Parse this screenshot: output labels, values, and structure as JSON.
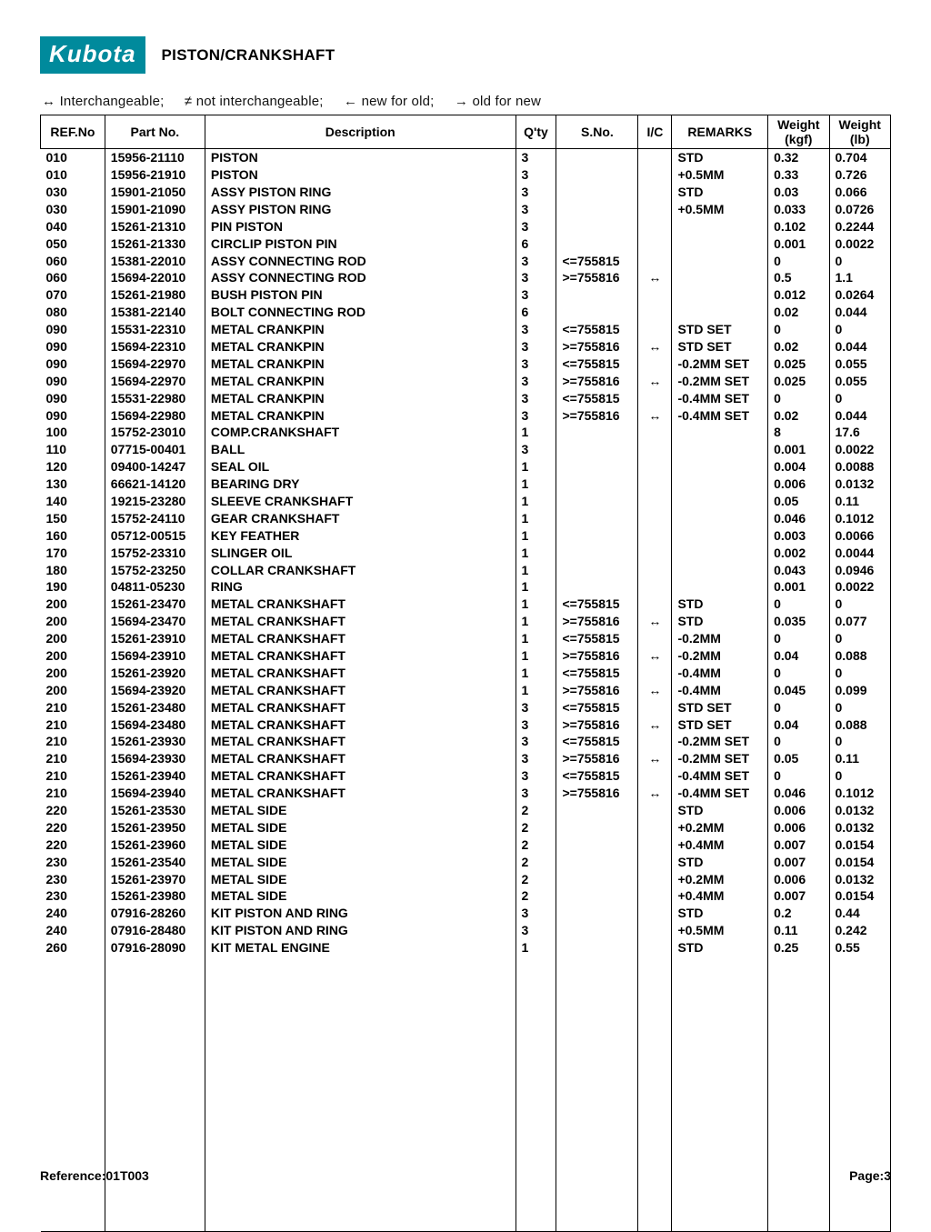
{
  "brand": "Kubota",
  "title": "PISTON/CRANKSHAFT",
  "legend": {
    "inter": "↔ Interchangeable;",
    "notinter": "≠ not interchangeable;",
    "newold": "← new for old;",
    "oldnew": "→ old for new"
  },
  "columns": [
    "REF.No",
    "Part No.",
    "Description",
    "Q'ty",
    "S.No.",
    "I/C",
    "REMARKS",
    "Weight (kgf)",
    "Weight (lb)"
  ],
  "footer": {
    "ref": "Reference:01T003",
    "page": "Page:3"
  },
  "rows": [
    {
      "ref": "010",
      "part": "15956-21110",
      "desc": "PISTON",
      "qty": "3",
      "sno": "",
      "ic": "",
      "rem": "STD",
      "kgf": "0.32",
      "lb": "0.704"
    },
    {
      "ref": "010",
      "part": "15956-21910",
      "desc": "PISTON",
      "qty": "3",
      "sno": "",
      "ic": "",
      "rem": "+0.5MM",
      "kgf": "0.33",
      "lb": "0.726"
    },
    {
      "ref": "030",
      "part": "15901-21050",
      "desc": "ASSY PISTON RING",
      "qty": "3",
      "sno": "",
      "ic": "",
      "rem": "STD",
      "kgf": "0.03",
      "lb": "0.066"
    },
    {
      "ref": "030",
      "part": "15901-21090",
      "desc": "ASSY PISTON RING",
      "qty": "3",
      "sno": "",
      "ic": "",
      "rem": "+0.5MM",
      "kgf": "0.033",
      "lb": "0.0726"
    },
    {
      "ref": "040",
      "part": "15261-21310",
      "desc": "PIN PISTON",
      "qty": "3",
      "sno": "",
      "ic": "",
      "rem": "",
      "kgf": "0.102",
      "lb": "0.2244"
    },
    {
      "ref": "050",
      "part": "15261-21330",
      "desc": "CIRCLIP PISTON PIN",
      "qty": "6",
      "sno": "",
      "ic": "",
      "rem": "",
      "kgf": "0.001",
      "lb": "0.0022"
    },
    {
      "ref": "060",
      "part": "15381-22010",
      "desc": "ASSY CONNECTING ROD",
      "qty": "3",
      "sno": "<=755815",
      "ic": "",
      "rem": "",
      "kgf": "0",
      "lb": "0"
    },
    {
      "ref": "060",
      "part": "15694-22010",
      "desc": "ASSY CONNECTING ROD",
      "qty": "3",
      "sno": ">=755816",
      "ic": "↔",
      "rem": "",
      "kgf": "0.5",
      "lb": "1.1"
    },
    {
      "ref": "070",
      "part": "15261-21980",
      "desc": "BUSH PISTON PIN",
      "qty": "3",
      "sno": "",
      "ic": "",
      "rem": "",
      "kgf": "0.012",
      "lb": "0.0264"
    },
    {
      "ref": "080",
      "part": "15381-22140",
      "desc": "BOLT CONNECTING ROD",
      "qty": "6",
      "sno": "",
      "ic": "",
      "rem": "",
      "kgf": "0.02",
      "lb": "0.044"
    },
    {
      "ref": "090",
      "part": "15531-22310",
      "desc": "METAL CRANKPIN",
      "qty": "3",
      "sno": "<=755815",
      "ic": "",
      "rem": "STD SET",
      "kgf": "0",
      "lb": "0"
    },
    {
      "ref": "090",
      "part": "15694-22310",
      "desc": "METAL CRANKPIN",
      "qty": "3",
      "sno": ">=755816",
      "ic": "↔",
      "rem": "STD SET",
      "kgf": "0.02",
      "lb": "0.044"
    },
    {
      "ref": "090",
      "part": "15694-22970",
      "desc": "METAL CRANKPIN",
      "qty": "3",
      "sno": "<=755815",
      "ic": "",
      "rem": "-0.2MM SET",
      "kgf": "0.025",
      "lb": "0.055"
    },
    {
      "ref": "090",
      "part": "15694-22970",
      "desc": "METAL CRANKPIN",
      "qty": "3",
      "sno": ">=755816",
      "ic": "↔",
      "rem": "-0.2MM SET",
      "kgf": "0.025",
      "lb": "0.055"
    },
    {
      "ref": "090",
      "part": "15531-22980",
      "desc": "METAL CRANKPIN",
      "qty": "3",
      "sno": "<=755815",
      "ic": "",
      "rem": "-0.4MM SET",
      "kgf": "0",
      "lb": "0"
    },
    {
      "ref": "090",
      "part": "15694-22980",
      "desc": "METAL CRANKPIN",
      "qty": "3",
      "sno": ">=755816",
      "ic": "↔",
      "rem": "-0.4MM SET",
      "kgf": "0.02",
      "lb": "0.044"
    },
    {
      "ref": "100",
      "part": "15752-23010",
      "desc": "COMP.CRANKSHAFT",
      "qty": "1",
      "sno": "",
      "ic": "",
      "rem": "",
      "kgf": "8",
      "lb": "17.6"
    },
    {
      "ref": "110",
      "part": "07715-00401",
      "desc": "BALL",
      "qty": "3",
      "sno": "",
      "ic": "",
      "rem": "",
      "kgf": "0.001",
      "lb": "0.0022"
    },
    {
      "ref": "120",
      "part": "09400-14247",
      "desc": "SEAL OIL",
      "qty": "1",
      "sno": "",
      "ic": "",
      "rem": "",
      "kgf": "0.004",
      "lb": "0.0088"
    },
    {
      "ref": "130",
      "part": "66621-14120",
      "desc": "BEARING DRY",
      "qty": "1",
      "sno": "",
      "ic": "",
      "rem": "",
      "kgf": "0.006",
      "lb": "0.0132"
    },
    {
      "ref": "140",
      "part": "19215-23280",
      "desc": "SLEEVE CRANKSHAFT",
      "qty": "1",
      "sno": "",
      "ic": "",
      "rem": "",
      "kgf": "0.05",
      "lb": "0.11"
    },
    {
      "ref": "150",
      "part": "15752-24110",
      "desc": "GEAR CRANKSHAFT",
      "qty": "1",
      "sno": "",
      "ic": "",
      "rem": "",
      "kgf": "0.046",
      "lb": "0.1012"
    },
    {
      "ref": "160",
      "part": "05712-00515",
      "desc": "KEY FEATHER",
      "qty": "1",
      "sno": "",
      "ic": "",
      "rem": "",
      "kgf": "0.003",
      "lb": "0.0066"
    },
    {
      "ref": "170",
      "part": "15752-23310",
      "desc": "SLINGER OIL",
      "qty": "1",
      "sno": "",
      "ic": "",
      "rem": "",
      "kgf": "0.002",
      "lb": "0.0044"
    },
    {
      "ref": "180",
      "part": "15752-23250",
      "desc": "COLLAR CRANKSHAFT",
      "qty": "1",
      "sno": "",
      "ic": "",
      "rem": "",
      "kgf": "0.043",
      "lb": "0.0946"
    },
    {
      "ref": "190",
      "part": "04811-05230",
      "desc": "RING",
      "qty": "1",
      "sno": "",
      "ic": "",
      "rem": "",
      "kgf": "0.001",
      "lb": "0.0022"
    },
    {
      "ref": "200",
      "part": "15261-23470",
      "desc": "METAL CRANKSHAFT",
      "qty": "1",
      "sno": "<=755815",
      "ic": "",
      "rem": "STD",
      "kgf": "0",
      "lb": "0"
    },
    {
      "ref": "200",
      "part": "15694-23470",
      "desc": "METAL CRANKSHAFT",
      "qty": "1",
      "sno": ">=755816",
      "ic": "↔",
      "rem": "STD",
      "kgf": "0.035",
      "lb": "0.077"
    },
    {
      "ref": "200",
      "part": "15261-23910",
      "desc": "METAL CRANKSHAFT",
      "qty": "1",
      "sno": "<=755815",
      "ic": "",
      "rem": "-0.2MM",
      "kgf": "0",
      "lb": "0"
    },
    {
      "ref": "200",
      "part": "15694-23910",
      "desc": "METAL CRANKSHAFT",
      "qty": "1",
      "sno": ">=755816",
      "ic": "↔",
      "rem": "-0.2MM",
      "kgf": "0.04",
      "lb": "0.088"
    },
    {
      "ref": "200",
      "part": "15261-23920",
      "desc": "METAL CRANKSHAFT",
      "qty": "1",
      "sno": "<=755815",
      "ic": "",
      "rem": "-0.4MM",
      "kgf": "0",
      "lb": "0"
    },
    {
      "ref": "200",
      "part": "15694-23920",
      "desc": "METAL CRANKSHAFT",
      "qty": "1",
      "sno": ">=755816",
      "ic": "↔",
      "rem": "-0.4MM",
      "kgf": "0.045",
      "lb": "0.099"
    },
    {
      "ref": "210",
      "part": "15261-23480",
      "desc": "METAL CRANKSHAFT",
      "qty": "3",
      "sno": "<=755815",
      "ic": "",
      "rem": "STD SET",
      "kgf": "0",
      "lb": "0"
    },
    {
      "ref": "210",
      "part": "15694-23480",
      "desc": "METAL CRANKSHAFT",
      "qty": "3",
      "sno": ">=755816",
      "ic": "↔",
      "rem": "STD SET",
      "kgf": "0.04",
      "lb": "0.088"
    },
    {
      "ref": "210",
      "part": "15261-23930",
      "desc": "METAL CRANKSHAFT",
      "qty": "3",
      "sno": "<=755815",
      "ic": "",
      "rem": "-0.2MM SET",
      "kgf": "0",
      "lb": "0"
    },
    {
      "ref": "210",
      "part": "15694-23930",
      "desc": "METAL CRANKSHAFT",
      "qty": "3",
      "sno": ">=755816",
      "ic": "↔",
      "rem": "-0.2MM SET",
      "kgf": "0.05",
      "lb": "0.11"
    },
    {
      "ref": "210",
      "part": "15261-23940",
      "desc": "METAL CRANKSHAFT",
      "qty": "3",
      "sno": "<=755815",
      "ic": "",
      "rem": "-0.4MM SET",
      "kgf": "0",
      "lb": "0"
    },
    {
      "ref": "210",
      "part": "15694-23940",
      "desc": "METAL CRANKSHAFT",
      "qty": "3",
      "sno": ">=755816",
      "ic": "↔",
      "rem": "-0.4MM SET",
      "kgf": "0.046",
      "lb": "0.1012"
    },
    {
      "ref": "220",
      "part": "15261-23530",
      "desc": "METAL SIDE",
      "qty": "2",
      "sno": "",
      "ic": "",
      "rem": "STD",
      "kgf": "0.006",
      "lb": "0.0132"
    },
    {
      "ref": "220",
      "part": "15261-23950",
      "desc": "METAL SIDE",
      "qty": "2",
      "sno": "",
      "ic": "",
      "rem": "+0.2MM",
      "kgf": "0.006",
      "lb": "0.0132"
    },
    {
      "ref": "220",
      "part": "15261-23960",
      "desc": "METAL SIDE",
      "qty": "2",
      "sno": "",
      "ic": "",
      "rem": "+0.4MM",
      "kgf": "0.007",
      "lb": "0.0154"
    },
    {
      "ref": "230",
      "part": "15261-23540",
      "desc": "METAL SIDE",
      "qty": "2",
      "sno": "",
      "ic": "",
      "rem": "STD",
      "kgf": "0.007",
      "lb": "0.0154"
    },
    {
      "ref": "230",
      "part": "15261-23970",
      "desc": "METAL SIDE",
      "qty": "2",
      "sno": "",
      "ic": "",
      "rem": "+0.2MM",
      "kgf": "0.006",
      "lb": "0.0132"
    },
    {
      "ref": "230",
      "part": "15261-23980",
      "desc": "METAL SIDE",
      "qty": "2",
      "sno": "",
      "ic": "",
      "rem": "+0.4MM",
      "kgf": "0.007",
      "lb": "0.0154"
    },
    {
      "ref": "240",
      "part": "07916-28260",
      "desc": "KIT PISTON AND RING",
      "qty": "3",
      "sno": "",
      "ic": "",
      "rem": "STD",
      "kgf": "0.2",
      "lb": "0.44"
    },
    {
      "ref": "240",
      "part": "07916-28480",
      "desc": "KIT PISTON AND RING",
      "qty": "3",
      "sno": "",
      "ic": "",
      "rem": "+0.5MM",
      "kgf": "0.11",
      "lb": "0.242"
    },
    {
      "ref": "260",
      "part": "07916-28090",
      "desc": "KIT METAL ENGINE",
      "qty": "1",
      "sno": "",
      "ic": "",
      "rem": "STD",
      "kgf": "0.25",
      "lb": "0.55"
    }
  ],
  "fillerRows": 16
}
